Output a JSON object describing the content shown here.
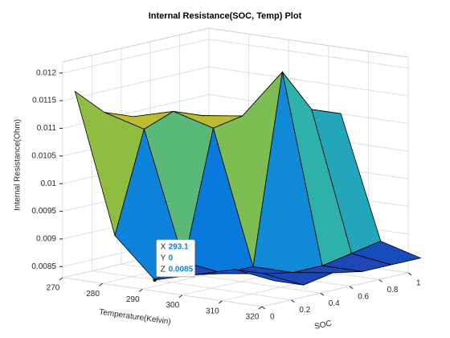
{
  "chart_data": {
    "type": "surface",
    "title": "Internal Resistance(SOC, Temp) Plot",
    "xlabel": "Temperature(Kelvin)",
    "ylabel": "SOC",
    "zlabel": "Internal Resistance(Ohm)",
    "x": [
      273.1,
      283.1,
      293.1,
      303.1,
      313.1,
      323.1
    ],
    "y": [
      0,
      0.2,
      0.4,
      0.6,
      0.8,
      1
    ],
    "z": [
      [
        0.0117,
        0.0092,
        0.0085,
        0.0087,
        0.0089,
        0.0088
      ],
      [
        0.0112,
        0.011,
        0.0087,
        0.0086,
        0.0087,
        0.0086
      ],
      [
        0.011,
        0.0112,
        0.011,
        0.0086,
        0.0086,
        0.0087
      ],
      [
        0.0108,
        0.011,
        0.0111,
        0.012,
        0.0086,
        0.0086
      ],
      [
        0.0106,
        0.0108,
        0.0109,
        0.0112,
        0.0087,
        0.0086
      ],
      [
        0.0104,
        0.0106,
        0.0107,
        0.011,
        0.0088,
        0.0086
      ]
    ],
    "xlim": [
      270,
      320
    ],
    "ylim": [
      0,
      1
    ],
    "zlim": [
      0.0083,
      0.0122
    ],
    "xticks": [
      270,
      280,
      290,
      300,
      310,
      320
    ],
    "yticks": [
      0,
      0.2,
      0.4,
      0.6,
      0.8,
      1
    ],
    "zticks": [
      0.0085,
      0.009,
      0.0095,
      0.01,
      0.0105,
      0.011,
      0.0115,
      0.012
    ],
    "grid": true,
    "colormap": [
      "#352a87",
      "#0363e1",
      "#1496d4",
      "#33b7a0",
      "#a5be2c",
      "#f1b834",
      "#f9fb0e"
    ],
    "datatip": {
      "x_label": "X",
      "x": 293.1,
      "y_label": "Y",
      "y": 0,
      "z_label": "Z",
      "z": 0.0085
    }
  }
}
